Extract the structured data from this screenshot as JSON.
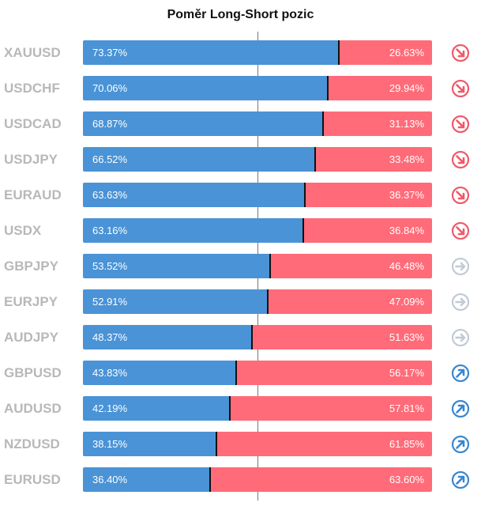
{
  "chart_data": {
    "type": "bar",
    "title": "Poměr Long-Short pozic",
    "categories": [
      "XAUUSD",
      "USDCHF",
      "USDCAD",
      "USDJPY",
      "EURAUD",
      "USDX",
      "GBPJPY",
      "EURJPY",
      "AUDJPY",
      "GBPUSD",
      "AUDUSD",
      "NZDUSD",
      "EURUSD"
    ],
    "series": [
      {
        "values": [
          73.37,
          70.06,
          68.87,
          66.52,
          63.63,
          63.16,
          53.52,
          52.91,
          48.37,
          43.83,
          42.19,
          38.15,
          36.4
        ],
        "labels": [
          "73.37%",
          "70.06%",
          "68.87%",
          "66.52%",
          "63.63%",
          "63.16%",
          "53.52%",
          "52.91%",
          "48.37%",
          "43.83%",
          "42.19%",
          "38.15%",
          "36.40%"
        ],
        "color": "#4a93d6"
      },
      {
        "values": [
          26.63,
          29.94,
          31.13,
          33.48,
          36.37,
          36.84,
          46.48,
          47.09,
          51.63,
          56.17,
          57.81,
          61.85,
          63.6
        ],
        "labels": [
          "26.63%",
          "29.94%",
          "31.13%",
          "33.48%",
          "36.37%",
          "36.84%",
          "46.48%",
          "47.09%",
          "51.63%",
          "56.17%",
          "57.81%",
          "61.85%",
          "63.60%"
        ],
        "color": "#ff6b78"
      }
    ],
    "signals": [
      "down",
      "down",
      "down",
      "down",
      "down",
      "down",
      "neutral",
      "neutral",
      "neutral",
      "up",
      "up",
      "up",
      "up"
    ],
    "signal_icons": {
      "down": "arrow-down-right-circle-icon",
      "neutral": "arrow-right-circle-icon",
      "up": "arrow-up-right-circle-icon"
    },
    "signal_colors": {
      "down": "#ee5a6a",
      "neutral": "#c2cad6",
      "up": "#3a86cf"
    },
    "reference_line": 50,
    "stacked": true,
    "orientation": "horizontal",
    "xlim": [
      0,
      100
    ]
  }
}
